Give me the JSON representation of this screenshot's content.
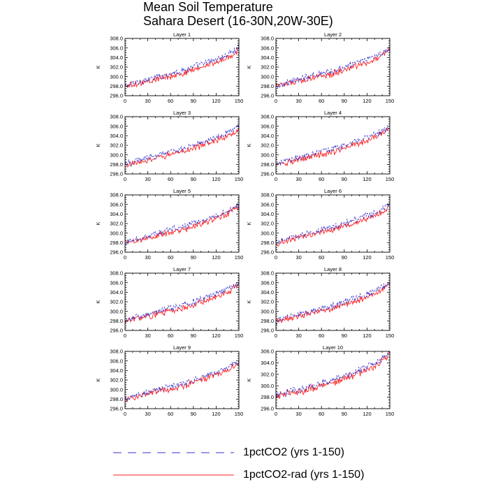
{
  "title": {
    "line1": "Mean Soil Temperature",
    "line2": "Sahara Desert (16-30N,20W-30E)"
  },
  "colors": {
    "series_1pctCO2": "#3333cc",
    "series_1pctCO2_rad": "#ff2222",
    "axis": "#000000"
  },
  "legend": [
    {
      "label": "1pctCO2 (yrs 1-150)",
      "style": "dashed",
      "color": "#3333cc"
    },
    {
      "label": "1pctCO2-rad (yrs 1-150)",
      "style": "solid",
      "color": "#ff2222"
    }
  ],
  "chart_data": [
    {
      "type": "line",
      "title": "Layer 1",
      "ylabel": "K",
      "xlim": [
        0,
        150
      ],
      "ylim": [
        296,
        308
      ],
      "xticks": [
        0,
        30,
        60,
        90,
        120,
        150
      ],
      "yticks": [
        296,
        298,
        300,
        302,
        304,
        306,
        308
      ],
      "ytick_format": "0.0",
      "series": [
        {
          "name": "1pctCO2 (yrs 1-150)",
          "x": [
            0,
            15,
            30,
            45,
            60,
            75,
            90,
            105,
            120,
            135,
            150
          ],
          "y": [
            298.0,
            298.8,
            299.4,
            300.0,
            300.7,
            301.2,
            302.0,
            302.8,
            303.6,
            304.6,
            306.0
          ]
        },
        {
          "name": "1pctCO2-rad (yrs 1-150)",
          "x": [
            0,
            15,
            30,
            45,
            60,
            75,
            90,
            105,
            120,
            135,
            150
          ],
          "y": [
            297.9,
            298.5,
            299.0,
            299.6,
            300.1,
            300.6,
            301.4,
            302.2,
            303.0,
            304.0,
            305.6
          ]
        }
      ]
    },
    {
      "type": "line",
      "title": "Layer 2",
      "ylabel": "K",
      "xlim": [
        0,
        150
      ],
      "ylim": [
        296,
        308
      ],
      "xticks": [
        0,
        30,
        60,
        90,
        120,
        150
      ],
      "yticks": [
        296,
        298,
        300,
        302,
        304,
        306,
        308
      ],
      "ytick_format": "0.0",
      "series": [
        {
          "name": "1pctCO2 (yrs 1-150)",
          "x": [
            0,
            15,
            30,
            45,
            60,
            75,
            90,
            105,
            120,
            135,
            150
          ],
          "y": [
            298.0,
            298.8,
            299.4,
            300.0,
            300.7,
            301.2,
            302.0,
            302.8,
            303.6,
            304.6,
            306.0
          ]
        },
        {
          "name": "1pctCO2-rad (yrs 1-150)",
          "x": [
            0,
            15,
            30,
            45,
            60,
            75,
            90,
            105,
            120,
            135,
            150
          ],
          "y": [
            297.9,
            298.5,
            299.0,
            299.6,
            300.1,
            300.6,
            301.4,
            302.2,
            303.0,
            304.0,
            305.6
          ]
        }
      ]
    },
    {
      "type": "line",
      "title": "Layer 3",
      "ylabel": "K",
      "xlim": [
        0,
        150
      ],
      "ylim": [
        296,
        308
      ],
      "xticks": [
        0,
        30,
        60,
        90,
        120,
        150
      ],
      "yticks": [
        296,
        298,
        300,
        302,
        304,
        306,
        308
      ],
      "ytick_format": "0.0",
      "series": [
        {
          "name": "1pctCO2 (yrs 1-150)",
          "x": [
            0,
            15,
            30,
            45,
            60,
            75,
            90,
            105,
            120,
            135,
            150
          ],
          "y": [
            298.0,
            298.8,
            299.4,
            300.0,
            300.7,
            301.2,
            302.0,
            302.8,
            303.6,
            304.6,
            306.0
          ]
        },
        {
          "name": "1pctCO2-rad (yrs 1-150)",
          "x": [
            0,
            15,
            30,
            45,
            60,
            75,
            90,
            105,
            120,
            135,
            150
          ],
          "y": [
            297.9,
            298.5,
            299.0,
            299.6,
            300.1,
            300.6,
            301.4,
            302.2,
            303.0,
            304.0,
            305.6
          ]
        }
      ]
    },
    {
      "type": "line",
      "title": "Layer 4",
      "ylabel": "K",
      "xlim": [
        0,
        150
      ],
      "ylim": [
        296,
        308
      ],
      "xticks": [
        0,
        30,
        60,
        90,
        120,
        150
      ],
      "yticks": [
        296,
        298,
        300,
        302,
        304,
        306,
        308
      ],
      "ytick_format": "0.0",
      "series": [
        {
          "name": "1pctCO2 (yrs 1-150)",
          "x": [
            0,
            15,
            30,
            45,
            60,
            75,
            90,
            105,
            120,
            135,
            150
          ],
          "y": [
            298.0,
            298.8,
            299.4,
            300.0,
            300.7,
            301.2,
            302.0,
            302.8,
            303.6,
            304.6,
            306.0
          ]
        },
        {
          "name": "1pctCO2-rad (yrs 1-150)",
          "x": [
            0,
            15,
            30,
            45,
            60,
            75,
            90,
            105,
            120,
            135,
            150
          ],
          "y": [
            297.9,
            298.5,
            299.0,
            299.6,
            300.1,
            300.6,
            301.4,
            302.2,
            303.0,
            304.0,
            305.6
          ]
        }
      ]
    },
    {
      "type": "line",
      "title": "Layer 5",
      "ylabel": "K",
      "xlim": [
        0,
        150
      ],
      "ylim": [
        296,
        308
      ],
      "xticks": [
        0,
        30,
        60,
        90,
        120,
        150
      ],
      "yticks": [
        296,
        298,
        300,
        302,
        304,
        306,
        308
      ],
      "ytick_format": "0.0",
      "series": [
        {
          "name": "1pctCO2 (yrs 1-150)",
          "x": [
            0,
            15,
            30,
            45,
            60,
            75,
            90,
            105,
            120,
            135,
            150
          ],
          "y": [
            298.0,
            298.8,
            299.4,
            300.0,
            300.7,
            301.2,
            302.0,
            302.8,
            303.6,
            304.6,
            306.0
          ]
        },
        {
          "name": "1pctCO2-rad (yrs 1-150)",
          "x": [
            0,
            15,
            30,
            45,
            60,
            75,
            90,
            105,
            120,
            135,
            150
          ],
          "y": [
            297.9,
            298.5,
            299.0,
            299.6,
            300.1,
            300.6,
            301.4,
            302.2,
            303.0,
            304.0,
            305.6
          ]
        }
      ]
    },
    {
      "type": "line",
      "title": "Layer 6",
      "ylabel": "K",
      "xlim": [
        0,
        150
      ],
      "ylim": [
        296,
        308
      ],
      "xticks": [
        0,
        30,
        60,
        90,
        120,
        150
      ],
      "yticks": [
        296,
        298,
        300,
        302,
        304,
        306,
        308
      ],
      "ytick_format": "0.0",
      "series": [
        {
          "name": "1pctCO2 (yrs 1-150)",
          "x": [
            0,
            15,
            30,
            45,
            60,
            75,
            90,
            105,
            120,
            135,
            150
          ],
          "y": [
            298.0,
            298.8,
            299.4,
            300.0,
            300.7,
            301.2,
            302.0,
            302.8,
            303.6,
            304.6,
            306.0
          ]
        },
        {
          "name": "1pctCO2-rad (yrs 1-150)",
          "x": [
            0,
            15,
            30,
            45,
            60,
            75,
            90,
            105,
            120,
            135,
            150
          ],
          "y": [
            297.9,
            298.5,
            299.0,
            299.6,
            300.1,
            300.6,
            301.4,
            302.2,
            303.0,
            304.0,
            305.6
          ]
        }
      ]
    },
    {
      "type": "line",
      "title": "Layer 7",
      "ylabel": "K",
      "xlim": [
        0,
        150
      ],
      "ylim": [
        296,
        308
      ],
      "xticks": [
        0,
        30,
        60,
        90,
        120,
        150
      ],
      "yticks": [
        296,
        298,
        300,
        302,
        304,
        306,
        308
      ],
      "ytick_format": "0.0",
      "series": [
        {
          "name": "1pctCO2 (yrs 1-150)",
          "x": [
            0,
            15,
            30,
            45,
            60,
            75,
            90,
            105,
            120,
            135,
            150
          ],
          "y": [
            298.0,
            298.8,
            299.4,
            300.0,
            300.7,
            301.2,
            302.0,
            302.8,
            303.6,
            304.6,
            306.0
          ]
        },
        {
          "name": "1pctCO2-rad (yrs 1-150)",
          "x": [
            0,
            15,
            30,
            45,
            60,
            75,
            90,
            105,
            120,
            135,
            150
          ],
          "y": [
            297.9,
            298.5,
            299.0,
            299.6,
            300.1,
            300.6,
            301.4,
            302.2,
            303.0,
            304.0,
            305.6
          ]
        }
      ]
    },
    {
      "type": "line",
      "title": "Layer 8",
      "ylabel": "K",
      "xlim": [
        0,
        150
      ],
      "ylim": [
        296,
        308
      ],
      "xticks": [
        0,
        30,
        60,
        90,
        120,
        150
      ],
      "yticks": [
        296,
        298,
        300,
        302,
        304,
        306,
        308
      ],
      "ytick_format": "0.0",
      "series": [
        {
          "name": "1pctCO2 (yrs 1-150)",
          "x": [
            0,
            15,
            30,
            45,
            60,
            75,
            90,
            105,
            120,
            135,
            150
          ],
          "y": [
            298.0,
            298.8,
            299.4,
            300.0,
            300.7,
            301.2,
            302.0,
            302.8,
            303.6,
            304.6,
            306.0
          ]
        },
        {
          "name": "1pctCO2-rad (yrs 1-150)",
          "x": [
            0,
            15,
            30,
            45,
            60,
            75,
            90,
            105,
            120,
            135,
            150
          ],
          "y": [
            297.9,
            298.5,
            299.0,
            299.6,
            300.1,
            300.6,
            301.4,
            302.2,
            303.0,
            304.0,
            305.6
          ]
        }
      ]
    },
    {
      "type": "line",
      "title": "Layer 9",
      "ylabel": "K",
      "xlim": [
        0,
        150
      ],
      "ylim": [
        296,
        308
      ],
      "xticks": [
        0,
        30,
        60,
        90,
        120,
        150
      ],
      "yticks": [
        296,
        298,
        300,
        302,
        304,
        306,
        308
      ],
      "ytick_format": "0.0",
      "series": [
        {
          "name": "1pctCO2 (yrs 1-150)",
          "x": [
            0,
            15,
            30,
            45,
            60,
            75,
            90,
            105,
            120,
            135,
            150
          ],
          "y": [
            298.0,
            298.8,
            299.4,
            300.0,
            300.7,
            301.2,
            302.0,
            302.8,
            303.6,
            304.6,
            306.0
          ]
        },
        {
          "name": "1pctCO2-rad (yrs 1-150)",
          "x": [
            0,
            15,
            30,
            45,
            60,
            75,
            90,
            105,
            120,
            135,
            150
          ],
          "y": [
            297.9,
            298.5,
            299.0,
            299.6,
            300.1,
            300.6,
            301.4,
            302.2,
            303.0,
            304.0,
            305.6
          ]
        }
      ]
    },
    {
      "type": "line",
      "title": "Layer 10",
      "ylabel": "K",
      "xlim": [
        0,
        150
      ],
      "ylim": [
        296,
        306
      ],
      "xticks": [
        0,
        30,
        60,
        90,
        120,
        150
      ],
      "yticks": [
        296,
        298,
        300,
        302,
        304,
        306
      ],
      "ytick_format": "0.0",
      "series": [
        {
          "name": "1pctCO2 (yrs 1-150)",
          "x": [
            0,
            15,
            30,
            45,
            60,
            75,
            90,
            105,
            120,
            135,
            150
          ],
          "y": [
            298.3,
            298.9,
            299.4,
            299.9,
            300.5,
            301.0,
            301.7,
            302.5,
            303.3,
            304.3,
            305.8
          ]
        },
        {
          "name": "1pctCO2-rad (yrs 1-150)",
          "x": [
            0,
            15,
            30,
            45,
            60,
            75,
            90,
            105,
            120,
            135,
            150
          ],
          "y": [
            298.2,
            298.6,
            299.0,
            299.5,
            300.0,
            300.5,
            301.2,
            302.0,
            302.8,
            303.8,
            305.4
          ]
        }
      ]
    }
  ]
}
